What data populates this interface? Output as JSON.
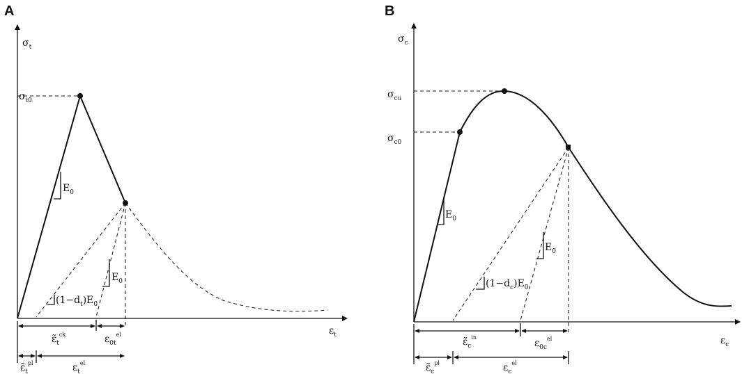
{
  "panel_a": {
    "label": "A",
    "sigma_axis": "σ",
    "sigma_axis_sub": "t",
    "eps_axis": "ε",
    "eps_axis_sub": "t",
    "peak_label": "σ",
    "peak_label_sub": "t0",
    "e0_upper": "E",
    "e0_upper_sub": "0",
    "e0_lower": "E",
    "e0_lower_sub": "0",
    "damaged_modulus": "(1−d",
    "damaged_modulus_sub": "t",
    "damaged_modulus_tail": ")E",
    "damaged_modulus_tail_sub": "0",
    "dim_ck": "ε̃",
    "dim_ck_sub": "t",
    "dim_ck_sup": "ck",
    "dim_el0": "ε",
    "dim_el0_sub": "0t",
    "dim_el0_sup": "el",
    "dim_pl": "ε̃",
    "dim_pl_sub": "t",
    "dim_pl_sup": "pl",
    "dim_el": "ε",
    "dim_el_sub": "t",
    "dim_el_sup": "el"
  },
  "panel_b": {
    "label": "B",
    "sigma_axis": "σ",
    "sigma_axis_sub": "c",
    "eps_axis": "ε",
    "eps_axis_sub": "c",
    "cu_label": "σ",
    "cu_label_sub": "cu",
    "c0_label": "σ",
    "c0_label_sub": "c0",
    "e0_upper": "E",
    "e0_upper_sub": "0",
    "e0_lower": "E",
    "e0_lower_sub": "0",
    "damaged_modulus": "(1−d",
    "damaged_modulus_sub": "c",
    "damaged_modulus_tail": ")E",
    "damaged_modulus_tail_sub": "0",
    "dim_in": "ε̃",
    "dim_in_sub": "c",
    "dim_in_sup": "in",
    "dim_el0": "ε",
    "dim_el0_sub": "0c",
    "dim_el0_sup": "el",
    "dim_pl": "ε̃",
    "dim_pl_sub": "c",
    "dim_pl_sup": "pl",
    "dim_el": "ε",
    "dim_el_sub": "c",
    "dim_el_sup": "el"
  }
}
